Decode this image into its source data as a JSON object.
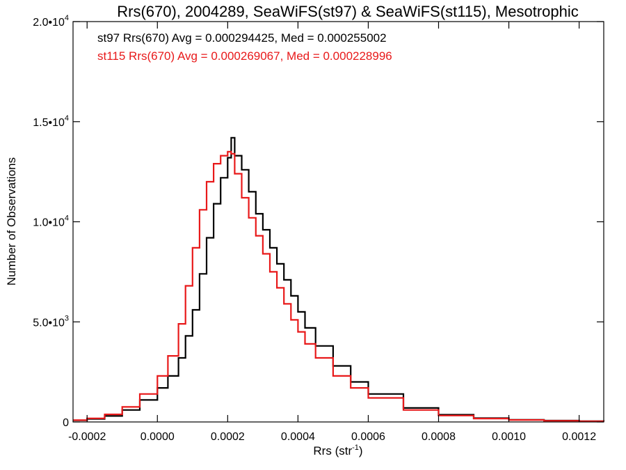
{
  "chart_data": {
    "type": "histogram",
    "title": "Rrs(670), 2004289, SeaWiFS(st97) & SeaWiFS(st115), Mesotrophic",
    "xlabel": "Rrs (str",
    "xlabel_sup": "-1",
    "xlabel_tail": ")",
    "ylabel": "Number of Observations",
    "xlim": [
      -0.00024,
      0.00127
    ],
    "ylim": [
      0,
      20000
    ],
    "grid": false,
    "x_ticks": [
      {
        "value": -0.0002,
        "label": "-0.0002"
      },
      {
        "value": 0.0,
        "label": "0.0000"
      },
      {
        "value": 0.0002,
        "label": "0.0002"
      },
      {
        "value": 0.0004,
        "label": "0.0004"
      },
      {
        "value": 0.0006,
        "label": "0.0006"
      },
      {
        "value": 0.0008,
        "label": "0.0008"
      },
      {
        "value": 0.001,
        "label": "0.0010"
      },
      {
        "value": 0.0012,
        "label": "0.0012"
      }
    ],
    "y_ticks": [
      {
        "value": 0,
        "base": "0",
        "exp": ""
      },
      {
        "value": 5000,
        "base": "5.0•10",
        "exp": "3"
      },
      {
        "value": 10000,
        "base": "1.0•10",
        "exp": "4"
      },
      {
        "value": 15000,
        "base": "1.5•10",
        "exp": "4"
      },
      {
        "value": 20000,
        "base": "2.0•10",
        "exp": "4"
      }
    ],
    "annotations": [
      {
        "text": "st97 Rrs(670) Avg = 0.000294425, Med = 0.000255002",
        "color": "#000000"
      },
      {
        "text": "st115 Rrs(670) Avg = 0.000269067, Med = 0.000228996",
        "color": "#e8191a"
      }
    ],
    "series": [
      {
        "color": "#000000",
        "points": [
          [
            -0.00024,
            80
          ],
          [
            -0.0002,
            150
          ],
          [
            -0.00015,
            300
          ],
          [
            -0.0001,
            600
          ],
          [
            -5e-05,
            1100
          ],
          [
            0.0,
            1700
          ],
          [
            3e-05,
            2300
          ],
          [
            6e-05,
            3200
          ],
          [
            8e-05,
            4300
          ],
          [
            0.0001,
            5600
          ],
          [
            0.00012,
            7400
          ],
          [
            0.00014,
            9200
          ],
          [
            0.00016,
            10900
          ],
          [
            0.00018,
            12200
          ],
          [
            0.0002,
            13200
          ],
          [
            0.00021,
            14200
          ],
          [
            0.00022,
            13300
          ],
          [
            0.00024,
            12600
          ],
          [
            0.00026,
            11500
          ],
          [
            0.00028,
            10400
          ],
          [
            0.0003,
            9600
          ],
          [
            0.00032,
            8700
          ],
          [
            0.00034,
            7900
          ],
          [
            0.00036,
            7100
          ],
          [
            0.00038,
            6300
          ],
          [
            0.0004,
            5500
          ],
          [
            0.00042,
            4700
          ],
          [
            0.00045,
            3800
          ],
          [
            0.0005,
            2800
          ],
          [
            0.00055,
            2000
          ],
          [
            0.0006,
            1400
          ],
          [
            0.0007,
            700
          ],
          [
            0.0008,
            360
          ],
          [
            0.0009,
            190
          ],
          [
            0.001,
            110
          ],
          [
            0.0011,
            70
          ],
          [
            0.0012,
            40
          ],
          [
            0.00127,
            30
          ]
        ]
      },
      {
        "color": "#e8191a",
        "points": [
          [
            -0.00024,
            90
          ],
          [
            -0.0002,
            180
          ],
          [
            -0.00015,
            380
          ],
          [
            -0.0001,
            750
          ],
          [
            -5e-05,
            1400
          ],
          [
            0.0,
            2300
          ],
          [
            3e-05,
            3300
          ],
          [
            6e-05,
            4900
          ],
          [
            8e-05,
            6800
          ],
          [
            0.0001,
            8700
          ],
          [
            0.00012,
            10600
          ],
          [
            0.00014,
            12000
          ],
          [
            0.00016,
            12900
          ],
          [
            0.00018,
            13300
          ],
          [
            0.0002,
            13500
          ],
          [
            0.00021,
            13400
          ],
          [
            0.00022,
            12400
          ],
          [
            0.00024,
            11200
          ],
          [
            0.00026,
            10200
          ],
          [
            0.00028,
            9300
          ],
          [
            0.0003,
            8400
          ],
          [
            0.00032,
            7500
          ],
          [
            0.00034,
            6700
          ],
          [
            0.00036,
            5900
          ],
          [
            0.00038,
            5100
          ],
          [
            0.0004,
            4500
          ],
          [
            0.00042,
            3900
          ],
          [
            0.00045,
            3200
          ],
          [
            0.0005,
            2300
          ],
          [
            0.00055,
            1700
          ],
          [
            0.0006,
            1200
          ],
          [
            0.0007,
            600
          ],
          [
            0.0008,
            320
          ],
          [
            0.0009,
            170
          ],
          [
            0.001,
            100
          ],
          [
            0.0011,
            60
          ],
          [
            0.0012,
            35
          ],
          [
            0.00127,
            25
          ]
        ]
      }
    ]
  }
}
